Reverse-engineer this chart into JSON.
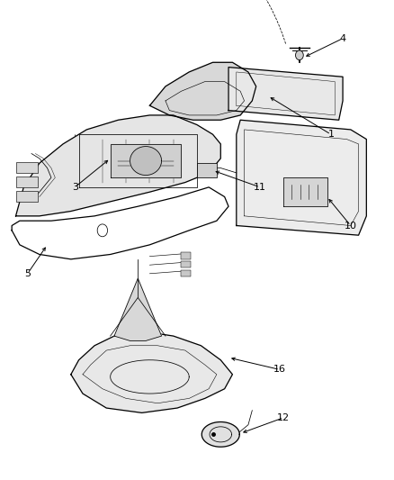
{
  "background_color": "#ffffff",
  "line_color": "#000000",
  "fig_width": 4.38,
  "fig_height": 5.33,
  "dpi": 100,
  "label_fontsize": 8
}
